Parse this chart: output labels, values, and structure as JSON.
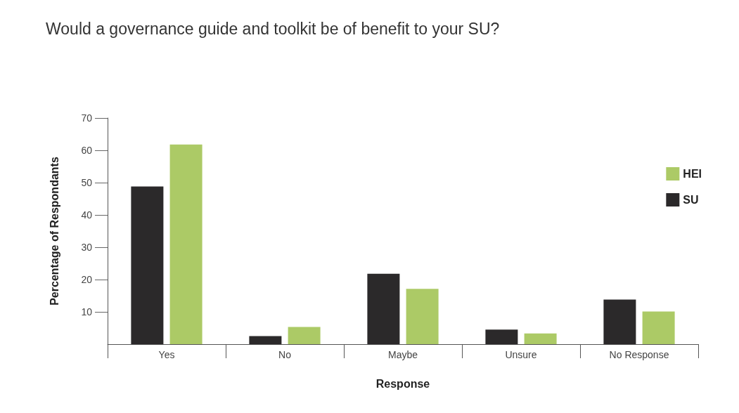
{
  "chart_data": {
    "type": "bar",
    "title": "Would a governance guide and toolkit be of benefit to your SU?",
    "xlabel": "Response",
    "ylabel": "Percentage of Respondants",
    "categories": [
      "Yes",
      "No",
      "Maybe",
      "Unsure",
      "No Response"
    ],
    "series": [
      {
        "name": "SU",
        "color": "#2b292a",
        "values": [
          48.8,
          2.5,
          21.8,
          4.5,
          13.8
        ]
      },
      {
        "name": "HEI",
        "color": "#acca66",
        "values": [
          61.8,
          5.3,
          17.1,
          3.3,
          10.1
        ]
      }
    ],
    "ylim": [
      0,
      70
    ],
    "yticks": [
      10,
      20,
      30,
      40,
      50,
      60,
      70
    ],
    "grid": false,
    "legend": "right"
  }
}
